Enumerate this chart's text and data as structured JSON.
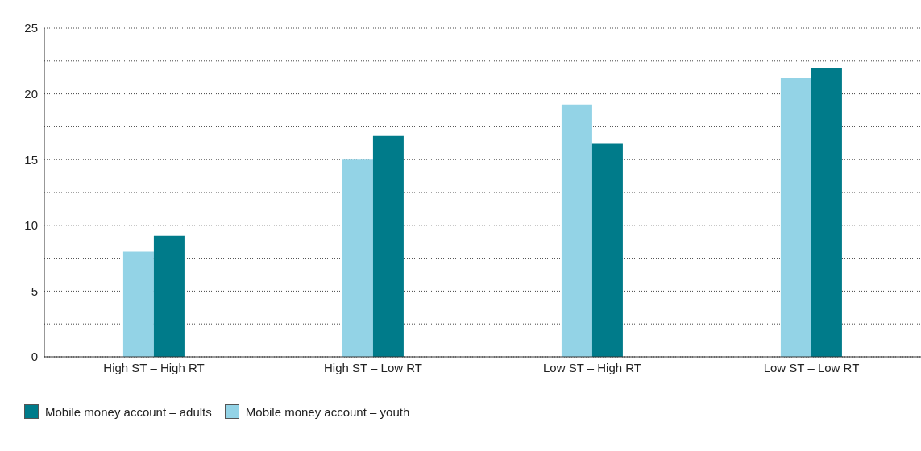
{
  "chart_data": {
    "type": "bar",
    "categories": [
      "High ST – High RT",
      "High ST – Low RT",
      "Low ST – High RT",
      "Low ST – Low RT"
    ],
    "series": [
      {
        "name": "Mobile money account – youth",
        "color": "#93d3e6",
        "values": [
          8.0,
          15.0,
          19.2,
          21.2
        ]
      },
      {
        "name": "Mobile money account – adults",
        "color": "#007b8a",
        "values": [
          9.2,
          16.8,
          16.2,
          22.0
        ]
      }
    ],
    "ylim": [
      0,
      25
    ],
    "yticks": [
      0,
      {
        "value": 2.5,
        "label": null
      },
      5,
      {
        "value": 7.5,
        "label": null
      },
      10,
      {
        "value": 12.5,
        "label": null
      },
      15,
      {
        "value": 17.5,
        "label": null
      },
      20,
      {
        "value": 22.5,
        "label": null
      },
      25
    ],
    "grid": "y",
    "legend": "bottom left"
  }
}
